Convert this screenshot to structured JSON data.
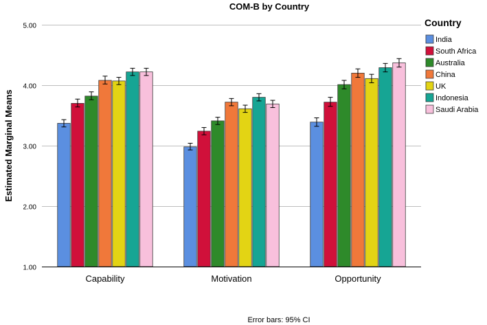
{
  "chart_data": {
    "type": "bar",
    "title": "COM-B by Country",
    "ylabel": "Estimated Marginal Means",
    "xlabel": "",
    "ylim": [
      1.0,
      5.0
    ],
    "yticks": [
      "1.00",
      "2.00",
      "3.00",
      "4.00",
      "5.00"
    ],
    "grid": true,
    "categories": [
      "Capability",
      "Motivation",
      "Opportunity"
    ],
    "legend_title": "Country",
    "legend_position": "right",
    "note": "Error bars: 95% CI",
    "series": [
      {
        "name": "India",
        "color": "#5b8fe0",
        "values": [
          3.37,
          2.98,
          3.39
        ],
        "ci": [
          [
            3.31,
            3.43
          ],
          [
            2.93,
            3.04
          ],
          [
            3.32,
            3.46
          ]
        ]
      },
      {
        "name": "South Africa",
        "color": "#d0103a",
        "values": [
          3.7,
          3.24,
          3.72
        ],
        "ci": [
          [
            3.64,
            3.77
          ],
          [
            3.18,
            3.3
          ],
          [
            3.65,
            3.8
          ]
        ]
      },
      {
        "name": "Australia",
        "color": "#2e8a2a",
        "values": [
          3.82,
          3.41,
          4.01
        ],
        "ci": [
          [
            3.76,
            3.89
          ],
          [
            3.35,
            3.47
          ],
          [
            3.94,
            4.08
          ]
        ]
      },
      {
        "name": "China",
        "color": "#f0783a",
        "values": [
          4.08,
          3.72,
          4.2
        ],
        "ci": [
          [
            4.02,
            4.15
          ],
          [
            3.66,
            3.78
          ],
          [
            4.13,
            4.27
          ]
        ]
      },
      {
        "name": "UK",
        "color": "#e3d414",
        "values": [
          4.07,
          3.61,
          4.11
        ],
        "ci": [
          [
            4.01,
            4.13
          ],
          [
            3.55,
            3.67
          ],
          [
            4.04,
            4.18
          ]
        ]
      },
      {
        "name": "Indonesia",
        "color": "#16a594",
        "values": [
          4.22,
          3.8,
          4.29
        ],
        "ci": [
          [
            4.16,
            4.28
          ],
          [
            3.74,
            3.86
          ],
          [
            4.22,
            4.36
          ]
        ]
      },
      {
        "name": "Saudi Arabia",
        "color": "#f8c0dc",
        "values": [
          4.22,
          3.69,
          4.37
        ],
        "ci": [
          [
            4.16,
            4.28
          ],
          [
            3.63,
            3.75
          ],
          [
            4.3,
            4.44
          ]
        ]
      }
    ]
  }
}
